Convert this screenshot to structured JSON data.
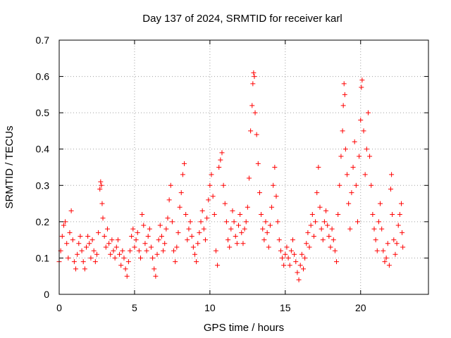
{
  "chart_data": {
    "type": "scatter",
    "title": "Day 137 of 2024, SRMTID for receiver karl",
    "xlabel": "GPS time / hours",
    "ylabel": "SRMTID / TECUs",
    "xlim": [
      0,
      24.5
    ],
    "ylim": [
      0,
      0.7
    ],
    "xticks": [
      0,
      5,
      10,
      15,
      20
    ],
    "yticks": [
      0,
      0.1,
      0.2,
      0.3,
      0.4,
      0.5,
      0.6,
      0.7
    ],
    "ytick_labels": [
      "0",
      "0.1",
      "0.2",
      "0.3",
      "0.4",
      "0.5",
      "0.6",
      "0.7"
    ],
    "grid": true,
    "marker": "+",
    "color": "#ff0000",
    "series": [
      {
        "name": "SRMTID",
        "note": "dense scatter of many satellite arcs; representative points read from plot",
        "points": [
          [
            0.0,
            0.09
          ],
          [
            0.1,
            0.12
          ],
          [
            0.2,
            0.16
          ],
          [
            0.3,
            0.19
          ],
          [
            0.4,
            0.2
          ],
          [
            0.5,
            0.14
          ],
          [
            0.6,
            0.1
          ],
          [
            0.7,
            0.17
          ],
          [
            0.8,
            0.23
          ],
          [
            0.9,
            0.15
          ],
          [
            1.0,
            0.09
          ],
          [
            1.1,
            0.07
          ],
          [
            1.2,
            0.11
          ],
          [
            1.3,
            0.14
          ],
          [
            1.4,
            0.16
          ],
          [
            1.5,
            0.12
          ],
          [
            1.6,
            0.09
          ],
          [
            1.7,
            0.07
          ],
          [
            1.8,
            0.13
          ],
          [
            1.9,
            0.16
          ],
          [
            2.0,
            0.14
          ],
          [
            2.1,
            0.1
          ],
          [
            2.2,
            0.15
          ],
          [
            2.3,
            0.12
          ],
          [
            2.4,
            0.09
          ],
          [
            2.5,
            0.11
          ],
          [
            2.6,
            0.17
          ],
          [
            2.7,
            0.29
          ],
          [
            2.75,
            0.31
          ],
          [
            2.8,
            0.3
          ],
          [
            2.85,
            0.25
          ],
          [
            2.9,
            0.21
          ],
          [
            3.0,
            0.16
          ],
          [
            3.1,
            0.13
          ],
          [
            3.2,
            0.18
          ],
          [
            3.3,
            0.14
          ],
          [
            3.4,
            0.11
          ],
          [
            3.5,
            0.15
          ],
          [
            3.6,
            0.12
          ],
          [
            3.7,
            0.1
          ],
          [
            3.8,
            0.13
          ],
          [
            3.9,
            0.15
          ],
          [
            4.0,
            0.11
          ],
          [
            4.1,
            0.08
          ],
          [
            4.2,
            0.12
          ],
          [
            4.3,
            0.1
          ],
          [
            4.4,
            0.07
          ],
          [
            4.5,
            0.05
          ],
          [
            4.6,
            0.09
          ],
          [
            4.7,
            0.12
          ],
          [
            4.8,
            0.16
          ],
          [
            4.9,
            0.18
          ],
          [
            5.0,
            0.13
          ],
          [
            5.1,
            0.15
          ],
          [
            5.2,
            0.17
          ],
          [
            5.3,
            0.12
          ],
          [
            5.4,
            0.1
          ],
          [
            5.5,
            0.22
          ],
          [
            5.6,
            0.19
          ],
          [
            5.7,
            0.14
          ],
          [
            5.8,
            0.12
          ],
          [
            5.9,
            0.16
          ],
          [
            6.0,
            0.18
          ],
          [
            6.1,
            0.13
          ],
          [
            6.2,
            0.1
          ],
          [
            6.3,
            0.07
          ],
          [
            6.4,
            0.05
          ],
          [
            6.5,
            0.11
          ],
          [
            6.6,
            0.15
          ],
          [
            6.7,
            0.19
          ],
          [
            6.8,
            0.16
          ],
          [
            6.9,
            0.12
          ],
          [
            7.0,
            0.14
          ],
          [
            7.1,
            0.18
          ],
          [
            7.2,
            0.21
          ],
          [
            7.3,
            0.26
          ],
          [
            7.4,
            0.3
          ],
          [
            7.5,
            0.2
          ],
          [
            7.6,
            0.12
          ],
          [
            7.7,
            0.09
          ],
          [
            7.8,
            0.13
          ],
          [
            7.9,
            0.17
          ],
          [
            8.0,
            0.24
          ],
          [
            8.1,
            0.28
          ],
          [
            8.2,
            0.33
          ],
          [
            8.3,
            0.36
          ],
          [
            8.4,
            0.22
          ],
          [
            8.5,
            0.15
          ],
          [
            8.6,
            0.18
          ],
          [
            8.7,
            0.2
          ],
          [
            8.8,
            0.16
          ],
          [
            8.9,
            0.13
          ],
          [
            9.0,
            0.11
          ],
          [
            9.1,
            0.09
          ],
          [
            9.2,
            0.14
          ],
          [
            9.3,
            0.17
          ],
          [
            9.4,
            0.2
          ],
          [
            9.5,
            0.23
          ],
          [
            9.6,
            0.18
          ],
          [
            9.7,
            0.15
          ],
          [
            9.8,
            0.21
          ],
          [
            9.9,
            0.26
          ],
          [
            10.0,
            0.3
          ],
          [
            10.1,
            0.33
          ],
          [
            10.2,
            0.27
          ],
          [
            10.3,
            0.22
          ],
          [
            10.4,
            0.12
          ],
          [
            10.5,
            0.08
          ],
          [
            10.6,
            0.35
          ],
          [
            10.7,
            0.37
          ],
          [
            10.8,
            0.39
          ],
          [
            10.9,
            0.3
          ],
          [
            11.0,
            0.25
          ],
          [
            11.1,
            0.2
          ],
          [
            11.2,
            0.15
          ],
          [
            11.3,
            0.13
          ],
          [
            11.4,
            0.18
          ],
          [
            11.5,
            0.23
          ],
          [
            11.6,
            0.2
          ],
          [
            11.7,
            0.16
          ],
          [
            11.8,
            0.14
          ],
          [
            11.9,
            0.19
          ],
          [
            12.0,
            0.22
          ],
          [
            12.1,
            0.17
          ],
          [
            12.2,
            0.14
          ],
          [
            12.3,
            0.18
          ],
          [
            12.4,
            0.2
          ],
          [
            12.5,
            0.24
          ],
          [
            12.6,
            0.32
          ],
          [
            12.7,
            0.45
          ],
          [
            12.8,
            0.52
          ],
          [
            12.85,
            0.58
          ],
          [
            12.9,
            0.61
          ],
          [
            12.95,
            0.6
          ],
          [
            13.0,
            0.5
          ],
          [
            13.1,
            0.44
          ],
          [
            13.2,
            0.36
          ],
          [
            13.3,
            0.28
          ],
          [
            13.4,
            0.22
          ],
          [
            13.5,
            0.18
          ],
          [
            13.6,
            0.15
          ],
          [
            13.7,
            0.2
          ],
          [
            13.8,
            0.17
          ],
          [
            13.9,
            0.13
          ],
          [
            14.0,
            0.19
          ],
          [
            14.1,
            0.24
          ],
          [
            14.2,
            0.3
          ],
          [
            14.3,
            0.35
          ],
          [
            14.4,
            0.27
          ],
          [
            14.5,
            0.2
          ],
          [
            14.6,
            0.15
          ],
          [
            14.7,
            0.12
          ],
          [
            14.8,
            0.1
          ],
          [
            14.9,
            0.08
          ],
          [
            15.0,
            0.11
          ],
          [
            15.1,
            0.13
          ],
          [
            15.2,
            0.1
          ],
          [
            15.3,
            0.08
          ],
          [
            15.4,
            0.12
          ],
          [
            15.5,
            0.15
          ],
          [
            15.6,
            0.11
          ],
          [
            15.7,
            0.09
          ],
          [
            15.8,
            0.06
          ],
          [
            15.9,
            0.04
          ],
          [
            16.0,
            0.08
          ],
          [
            16.1,
            0.11
          ],
          [
            16.2,
            0.07
          ],
          [
            16.3,
            0.1
          ],
          [
            16.4,
            0.14
          ],
          [
            16.5,
            0.17
          ],
          [
            16.6,
            0.13
          ],
          [
            16.7,
            0.19
          ],
          [
            16.8,
            0.22
          ],
          [
            16.9,
            0.16
          ],
          [
            17.0,
            0.2
          ],
          [
            17.1,
            0.28
          ],
          [
            17.2,
            0.35
          ],
          [
            17.3,
            0.24
          ],
          [
            17.4,
            0.18
          ],
          [
            17.5,
            0.15
          ],
          [
            17.6,
            0.2
          ],
          [
            17.7,
            0.23
          ],
          [
            17.8,
            0.19
          ],
          [
            17.9,
            0.16
          ],
          [
            18.0,
            0.13
          ],
          [
            18.1,
            0.18
          ],
          [
            18.2,
            0.15
          ],
          [
            18.3,
            0.12
          ],
          [
            18.4,
            0.09
          ],
          [
            18.5,
            0.22
          ],
          [
            18.6,
            0.3
          ],
          [
            18.7,
            0.38
          ],
          [
            18.8,
            0.45
          ],
          [
            18.85,
            0.52
          ],
          [
            18.9,
            0.58
          ],
          [
            18.95,
            0.55
          ],
          [
            19.0,
            0.4
          ],
          [
            19.1,
            0.33
          ],
          [
            19.2,
            0.25
          ],
          [
            19.3,
            0.18
          ],
          [
            19.4,
            0.28
          ],
          [
            19.5,
            0.35
          ],
          [
            19.6,
            0.42
          ],
          [
            19.7,
            0.3
          ],
          [
            19.8,
            0.2
          ],
          [
            19.9,
            0.38
          ],
          [
            20.0,
            0.48
          ],
          [
            20.05,
            0.57
          ],
          [
            20.1,
            0.59
          ],
          [
            20.2,
            0.45
          ],
          [
            20.3,
            0.33
          ],
          [
            20.4,
            0.4
          ],
          [
            20.5,
            0.5
          ],
          [
            20.6,
            0.38
          ],
          [
            20.7,
            0.3
          ],
          [
            20.8,
            0.22
          ],
          [
            20.9,
            0.18
          ],
          [
            21.0,
            0.15
          ],
          [
            21.1,
            0.12
          ],
          [
            21.2,
            0.2
          ],
          [
            21.3,
            0.25
          ],
          [
            21.4,
            0.18
          ],
          [
            21.5,
            0.12
          ],
          [
            21.6,
            0.09
          ],
          [
            21.7,
            0.1
          ],
          [
            21.8,
            0.14
          ],
          [
            21.9,
            0.08
          ],
          [
            22.0,
            0.29
          ],
          [
            22.05,
            0.33
          ],
          [
            22.1,
            0.22
          ],
          [
            22.2,
            0.15
          ],
          [
            22.3,
            0.11
          ],
          [
            22.4,
            0.14
          ],
          [
            22.5,
            0.19
          ],
          [
            22.6,
            0.22
          ],
          [
            22.7,
            0.25
          ],
          [
            22.75,
            0.17
          ],
          [
            22.8,
            0.13
          ]
        ]
      }
    ]
  }
}
